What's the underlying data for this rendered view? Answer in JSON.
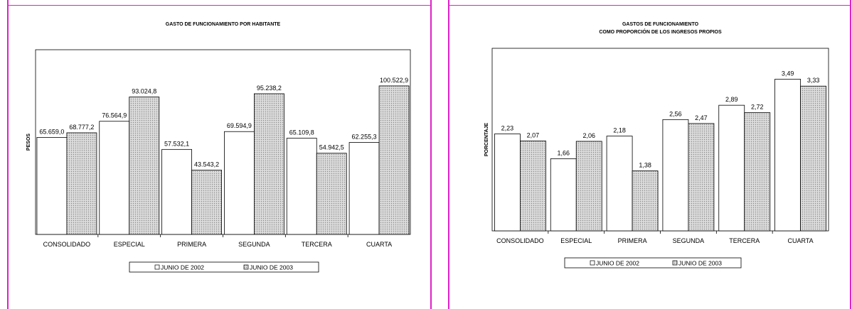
{
  "colors": {
    "frame": "#e020c8",
    "bar_2002": "#ffffff",
    "bar_2003": "#dcdcdc",
    "hatch": "#8a8a8a"
  },
  "chart_data": [
    {
      "type": "bar",
      "title": "GASTO DE FUNCIONAMIENTO POR HABITANTE",
      "ylabel": "PESOS",
      "xlabel": "",
      "ylim": [
        0,
        125000
      ],
      "categories": [
        "CONSOLIDADO",
        "ESPECIAL",
        "PRIMERA",
        "SEGUNDA",
        "TERCERA",
        "CUARTA"
      ],
      "series": [
        {
          "name": "JUNIO DE 2002",
          "values": [
            65659.0,
            76564.9,
            57532.1,
            69594.9,
            65109.8,
            62255.3
          ],
          "labels": [
            "65.659,0",
            "76.564,9",
            "57.532,1",
            "69.594,9",
            "65.109,8",
            "62.255,3"
          ]
        },
        {
          "name": "JUNIO DE 2003",
          "values": [
            68777.2,
            93024.8,
            43543.2,
            95238.2,
            54942.5,
            100522.9
          ],
          "labels": [
            "68.777,2",
            "93.024,8",
            "43.543,2",
            "95.238,2",
            "54.942,5",
            "100.522,9"
          ]
        }
      ],
      "legend": "bottom",
      "grid": false
    },
    {
      "type": "bar",
      "title": "GASTOS DE FUNCIONAMIENTO",
      "subtitle": "COMO PROPORCIÓN DE LOS INGRESOS PROPIOS",
      "ylabel": "PORCENTAJE",
      "xlabel": "",
      "ylim": [
        0,
        4.2
      ],
      "categories": [
        "CONSOLIDADO",
        "ESPECIAL",
        "PRIMERA",
        "SEGUNDA",
        "TERCERA",
        "CUARTA"
      ],
      "series": [
        {
          "name": "JUNIO DE 2002",
          "values": [
            2.23,
            1.66,
            2.18,
            2.56,
            2.89,
            3.49
          ],
          "labels": [
            "2,23",
            "1,66",
            "2,18",
            "2,56",
            "2,89",
            "3,49"
          ]
        },
        {
          "name": "JUNIO DE 2003",
          "values": [
            2.07,
            2.06,
            1.38,
            2.47,
            2.72,
            3.33
          ],
          "labels": [
            "2,07",
            "2,06",
            "1,38",
            "2,47",
            "2,72",
            "3,33"
          ]
        }
      ],
      "legend": "bottom",
      "grid": false
    }
  ]
}
